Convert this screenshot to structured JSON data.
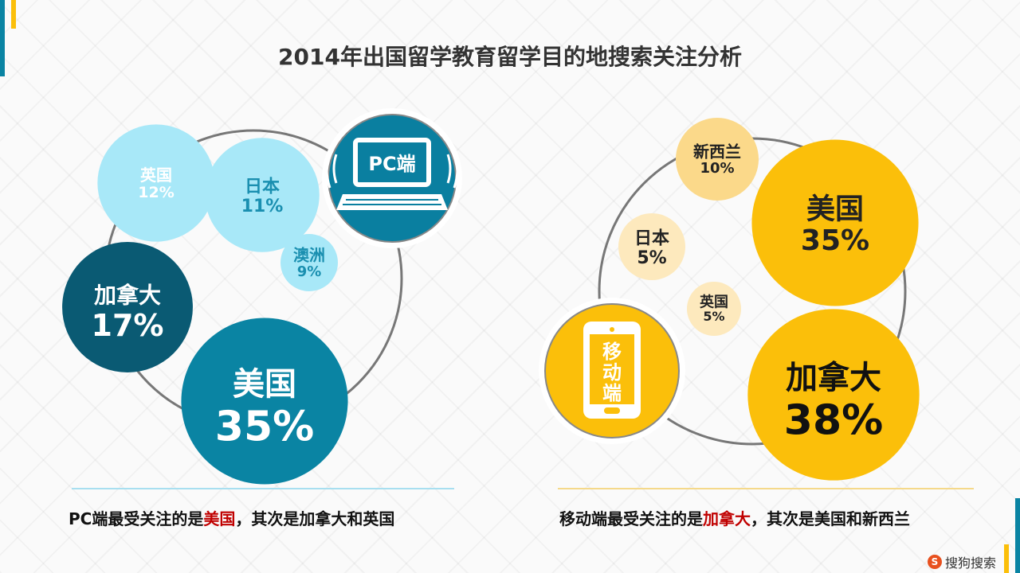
{
  "title": "2014年出国留学教育留学目的地搜索关注分析",
  "chart_data": [
    {
      "type": "bubble",
      "platform_label": "PC端",
      "series": [
        {
          "label": "美国",
          "value": 35,
          "display": "35%"
        },
        {
          "label": "加拿大",
          "value": 17,
          "display": "17%"
        },
        {
          "label": "英国",
          "value": 12,
          "display": "12%"
        },
        {
          "label": "日本",
          "value": 11,
          "display": "11%"
        },
        {
          "label": "澳洲",
          "value": 9,
          "display": "9%"
        }
      ]
    },
    {
      "type": "bubble",
      "platform_label": "移动端",
      "series": [
        {
          "label": "加拿大",
          "value": 38,
          "display": "38%"
        },
        {
          "label": "美国",
          "value": 35,
          "display": "35%"
        },
        {
          "label": "新西兰",
          "value": 10,
          "display": "10%"
        },
        {
          "label": "日本",
          "value": 5,
          "display": "5%"
        },
        {
          "label": "英国",
          "value": 5,
          "display": "5%"
        }
      ]
    }
  ],
  "captions": {
    "pc": {
      "before": "PC端最受关注的是",
      "highlight": "美国",
      "after": "，其次是加拿大和英国"
    },
    "mobile": {
      "before": "移动端最受关注的是",
      "highlight": "加拿大",
      "after": "，其次是美国和新西兰"
    }
  },
  "logo": {
    "mark": "S",
    "text": "搜狗搜索"
  },
  "colors": {
    "pc_dark": "#0a5a73",
    "pc_mid": "#0a84a3",
    "pc_light": "#a8e8f8",
    "pc_light_text": "#1a8fb0",
    "mobile_gold": "#fbbf0a",
    "mobile_light": "#fbd98a",
    "mobile_pale": "#fde9bd",
    "accent_red": "#c00000"
  }
}
